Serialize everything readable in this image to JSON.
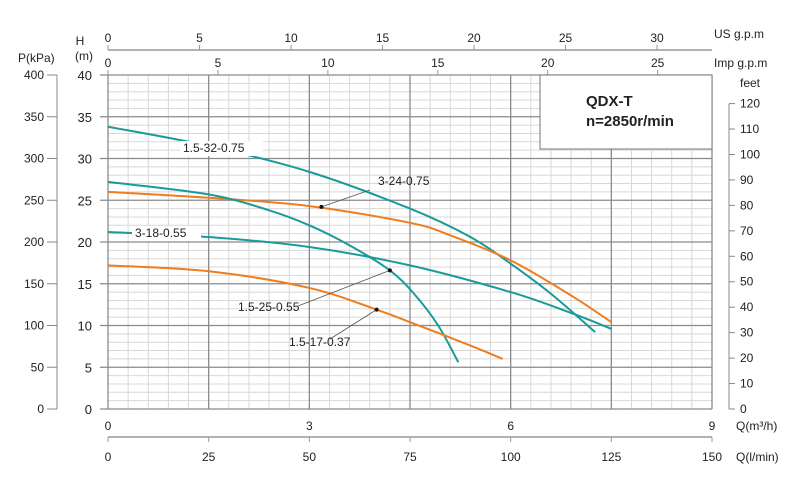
{
  "chart_data": {
    "type": "line",
    "title": "QDX-T",
    "subtitle": "n=2850r/min",
    "xlabel": "Q(l/min)",
    "ylabel": "H (m)",
    "xlim": [
      0,
      150
    ],
    "ylim": [
      0,
      40
    ],
    "grid": true,
    "axes": {
      "left_p": {
        "label": "P(kPa)",
        "ticks": [
          0,
          50,
          100,
          150,
          200,
          250,
          300,
          350,
          400
        ]
      },
      "left_h": {
        "label_top": "H",
        "label_unit": "(m)",
        "ticks": [
          0,
          5,
          10,
          15,
          20,
          25,
          30,
          35,
          40
        ]
      },
      "right_feet": {
        "label": "feet",
        "ticks": [
          0,
          10,
          20,
          30,
          40,
          50,
          60,
          70,
          80,
          90,
          100,
          110,
          120
        ],
        "m_per_unit": 0.3048
      },
      "top_us": {
        "label": "US g.p.m",
        "ticks": [
          0,
          5,
          10,
          15,
          20,
          25,
          30
        ],
        "lpm_per_unit": 4.545
      },
      "top_imp": {
        "label": "Imp g.p.m",
        "ticks": [
          0,
          5,
          10,
          15,
          20,
          25
        ],
        "lpm_per_unit": 5.46
      },
      "bottom_m3h": {
        "label": "Q(m³/h)",
        "ticks": [
          0,
          3,
          6,
          9
        ]
      },
      "bottom_lpm": {
        "label": "Q(l/min)",
        "ticks": [
          0,
          25,
          50,
          75,
          100,
          125,
          150
        ]
      }
    },
    "colors": {
      "teal": "#1a9a98",
      "orange": "#ee7d1e",
      "grid_major": "#8a8a8a",
      "grid_minor": "#d8d8d8"
    },
    "series": [
      {
        "name": "1.5-32-0.75",
        "color": "teal",
        "x": [
          0,
          25,
          50,
          75,
          90,
          100,
          110,
          121
        ],
        "y": [
          33.8,
          31.5,
          28.4,
          24.0,
          20.6,
          17.4,
          13.8,
          9.2
        ]
      },
      {
        "name": "3-24-0.75",
        "color": "orange",
        "x": [
          0,
          25,
          50,
          75,
          85,
          100,
          115,
          125
        ],
        "y": [
          26.0,
          25.3,
          24.3,
          22.3,
          20.8,
          17.8,
          13.6,
          10.4
        ]
      },
      {
        "name": "1.5-25-0.55",
        "color": "teal",
        "x": [
          0,
          25,
          40,
          50,
          60,
          70,
          76,
          82,
          87
        ],
        "y": [
          27.2,
          25.7,
          23.8,
          22.0,
          19.6,
          16.6,
          13.8,
          10.0,
          5.6
        ]
      },
      {
        "name": "3-18-0.55",
        "color": "teal",
        "x": [
          0,
          25,
          50,
          75,
          100,
          115,
          125
        ],
        "y": [
          21.2,
          20.6,
          19.4,
          17.2,
          14.0,
          11.5,
          9.6
        ]
      },
      {
        "name": "1.5-17-0.37",
        "color": "orange",
        "x": [
          0,
          25,
          50,
          66.7,
          75,
          90,
          98
        ],
        "y": [
          17.2,
          16.5,
          14.5,
          11.9,
          10.4,
          7.6,
          6.0
        ]
      }
    ],
    "annotations": [
      {
        "text": "1.5-32-0.75",
        "series": "1.5-32-0.75"
      },
      {
        "text": "3-24-0.75",
        "series": "3-24-0.75",
        "point": [
          53,
          24.2
        ]
      },
      {
        "text": "3-18-0.55",
        "series": "3-18-0.55"
      },
      {
        "text": "1.5-25-0.55",
        "series": "1.5-25-0.55",
        "point": [
          70,
          16.6
        ]
      },
      {
        "text": "1.5-17-0.37",
        "series": "1.5-17-0.37",
        "point": [
          66.7,
          11.9
        ]
      }
    ]
  }
}
